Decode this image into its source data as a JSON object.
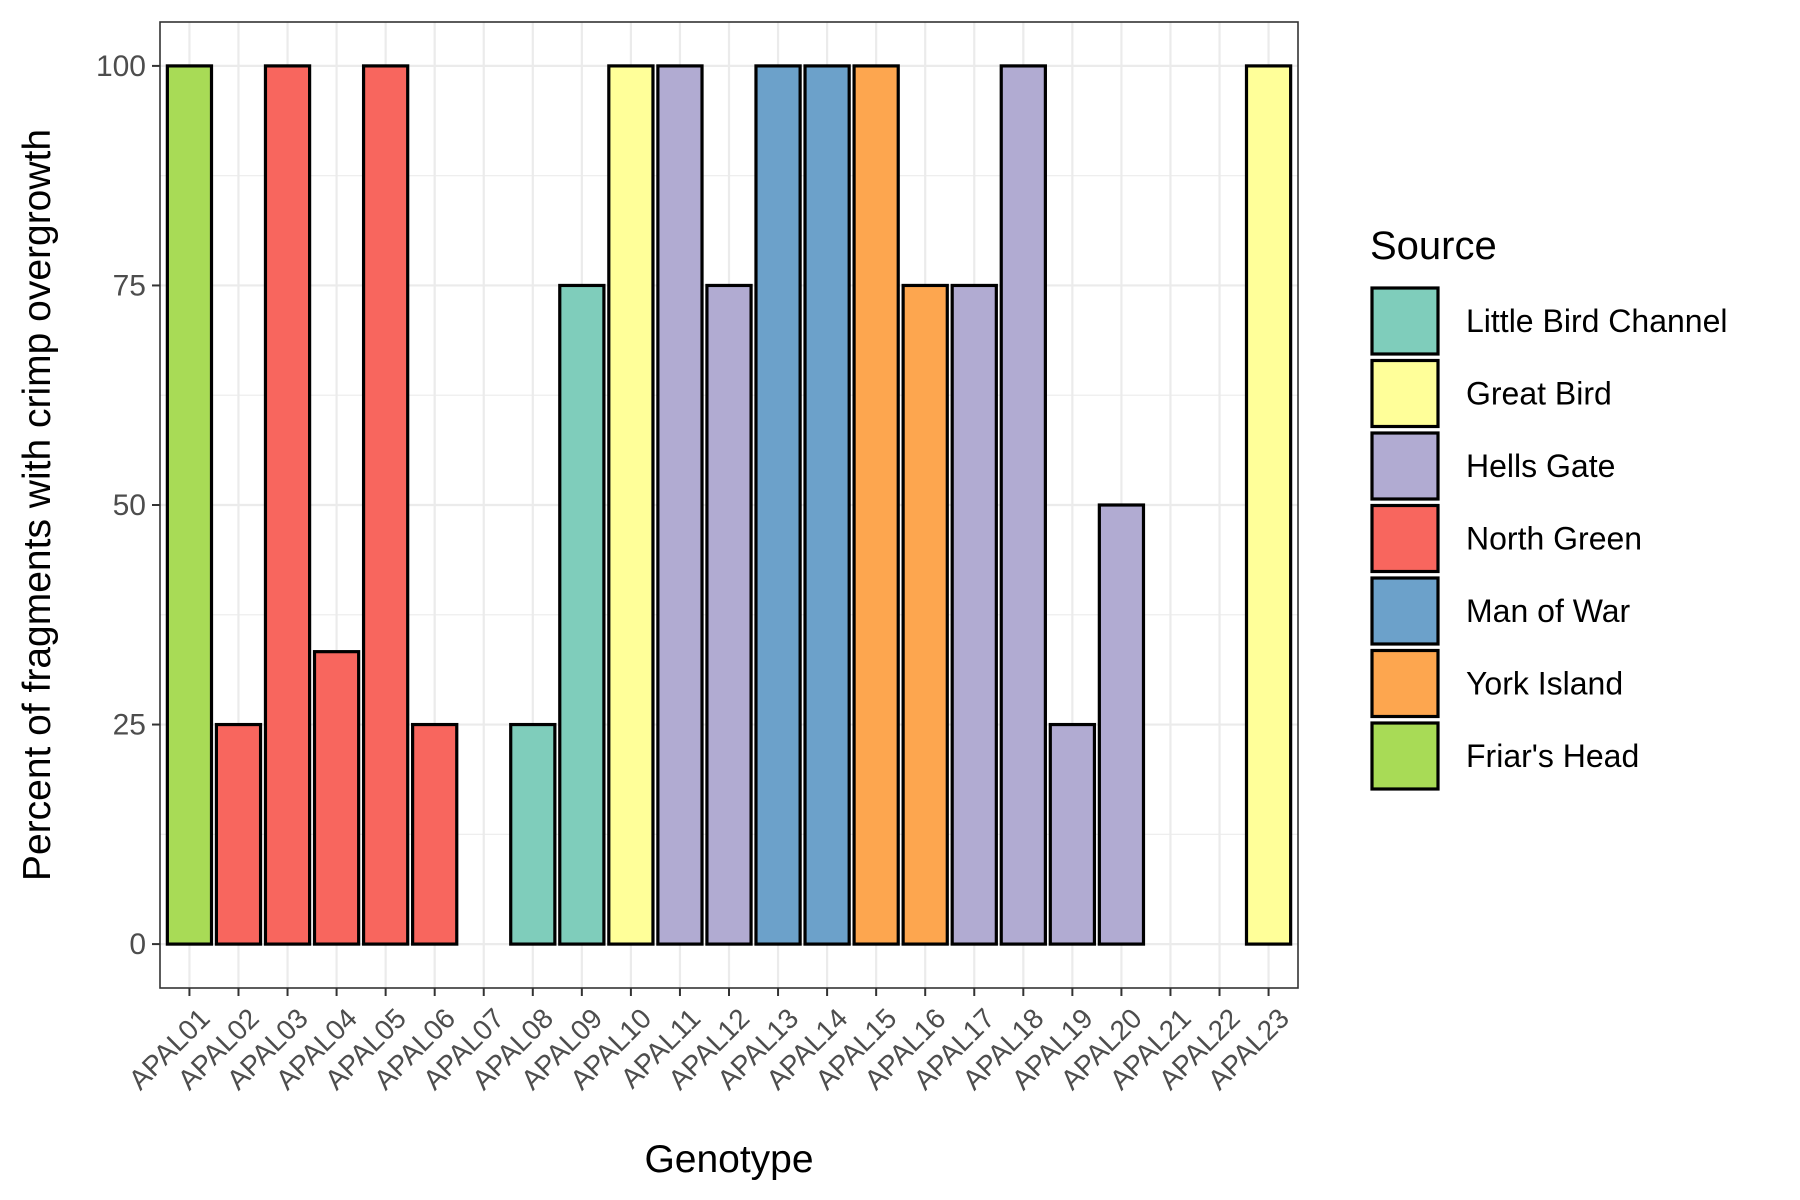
{
  "chart_data": {
    "type": "bar",
    "xlabel": "Genotype",
    "ylabel": "Percent of fragments with crimp overgrowth",
    "ylim": [
      -5,
      105
    ],
    "yticks": [
      0,
      25,
      50,
      75,
      100
    ],
    "grid": true,
    "legend": {
      "title": "Source",
      "position": "right",
      "entries": [
        {
          "label": "Little Bird Channel",
          "color": "#7fcdbb"
        },
        {
          "label": "Great Bird",
          "color": "#ffff99"
        },
        {
          "label": "Hells Gate",
          "color": "#b1abd2"
        },
        {
          "label": "North Green",
          "color": "#f8665e"
        },
        {
          "label": "Man of War",
          "color": "#6ca1ca"
        },
        {
          "label": "York Island",
          "color": "#fda64f"
        },
        {
          "label": "Friar's Head",
          "color": "#a8db56"
        }
      ]
    },
    "categories": [
      "APAL01",
      "APAL02",
      "APAL03",
      "APAL04",
      "APAL05",
      "APAL06",
      "APAL07",
      "APAL08",
      "APAL09",
      "APAL10",
      "APAL11",
      "APAL12",
      "APAL13",
      "APAL14",
      "APAL15",
      "APAL16",
      "APAL17",
      "APAL18",
      "APAL19",
      "APAL20",
      "APAL21",
      "APAL22",
      "APAL23"
    ],
    "values": [
      100,
      25,
      100,
      33.3,
      100,
      25,
      0,
      25,
      75,
      100,
      100,
      75,
      100,
      100,
      100,
      75,
      75,
      100,
      25,
      50,
      0,
      0,
      100
    ],
    "source": [
      "Friar's Head",
      "North Green",
      "North Green",
      "North Green",
      "North Green",
      "North Green",
      "",
      "Little Bird Channel",
      "Little Bird Channel",
      "Great Bird",
      "Hells Gate",
      "Hells Gate",
      "Man of War",
      "Man of War",
      "York Island",
      "York Island",
      "Hells Gate",
      "Hells Gate",
      "Hells Gate",
      "Hells Gate",
      "",
      "",
      "Great Bird"
    ]
  }
}
